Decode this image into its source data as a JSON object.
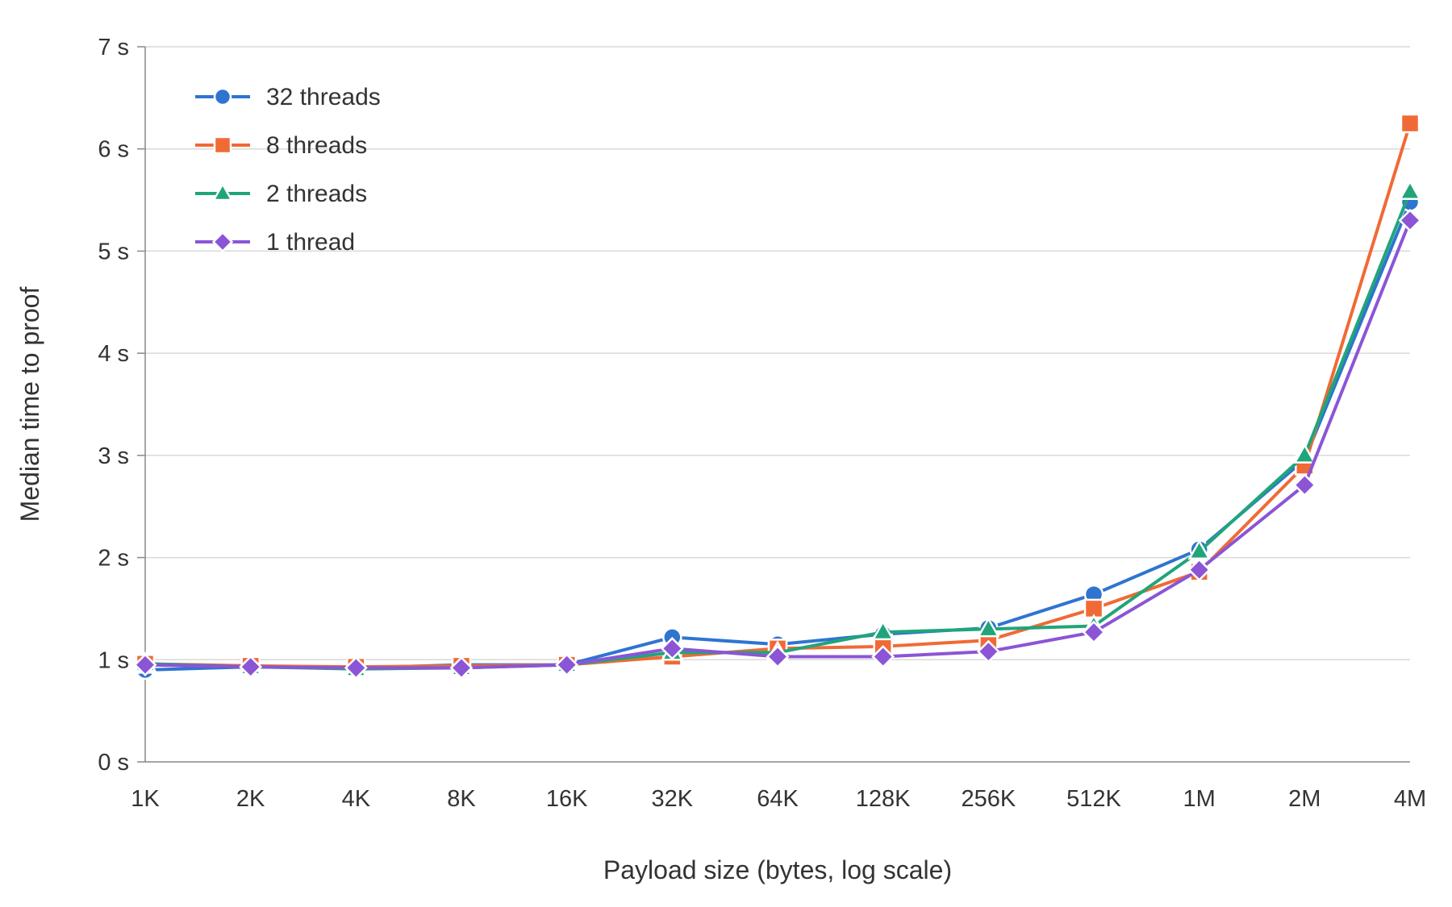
{
  "chart_data": {
    "type": "line",
    "title": "",
    "xlabel": "Payload size (bytes, log scale)",
    "ylabel": "Median time to proof",
    "x_scale": "log2",
    "categories": [
      "1K",
      "2K",
      "4K",
      "8K",
      "16K",
      "32K",
      "64K",
      "128K",
      "256K",
      "512K",
      "1M",
      "2M",
      "4M"
    ],
    "y_ticks": [
      "0 s",
      "1 s",
      "2 s",
      "3 s",
      "4 s",
      "5 s",
      "6 s",
      "7 s"
    ],
    "y_unit": "s",
    "ylim": [
      0,
      7
    ],
    "grid": "horizontal",
    "legend_position": "top-left",
    "series": [
      {
        "name": "32 threads",
        "color": "#2f74d0",
        "marker": "circle",
        "values": [
          0.9,
          0.93,
          0.92,
          0.95,
          0.95,
          1.22,
          1.15,
          1.25,
          1.31,
          1.64,
          2.08,
          2.96,
          5.48
        ]
      },
      {
        "name": "8 threads",
        "color": "#f06a35",
        "marker": "square",
        "values": [
          0.96,
          0.94,
          0.93,
          0.94,
          0.95,
          1.03,
          1.11,
          1.13,
          1.19,
          1.5,
          1.86,
          2.9,
          6.25
        ]
      },
      {
        "name": "2 threads",
        "color": "#20a57a",
        "marker": "triangle",
        "values": [
          0.96,
          0.93,
          0.91,
          0.92,
          0.95,
          1.07,
          1.07,
          1.27,
          1.3,
          1.33,
          2.06,
          3.0,
          5.58
        ]
      },
      {
        "name": "1 thread",
        "color": "#8b55d6",
        "marker": "diamond",
        "values": [
          0.95,
          0.93,
          0.92,
          0.92,
          0.95,
          1.11,
          1.03,
          1.03,
          1.08,
          1.27,
          1.88,
          2.71,
          5.3
        ]
      }
    ]
  }
}
